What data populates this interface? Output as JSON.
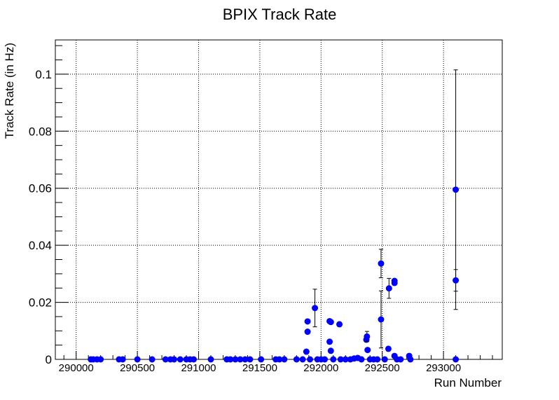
{
  "chart_data": {
    "type": "scatter",
    "title": "BPIX Track Rate",
    "xlabel": "Run Number",
    "ylabel": "Track Rate (in Hz)",
    "xlim": [
      289830,
      293480
    ],
    "ylim": [
      0,
      0.112
    ],
    "x_ticks": [
      290000,
      290500,
      291000,
      291500,
      292000,
      292500,
      293000
    ],
    "y_ticks": [
      0,
      0.02,
      0.04,
      0.06,
      0.08,
      0.1
    ],
    "y_tick_labels": [
      "0",
      "0.02",
      "0.04",
      "0.06",
      "0.08",
      "0.1"
    ],
    "grid": true,
    "grid_style": "dotted",
    "marker_color": "#0000ff",
    "errorbar_color": "#000000",
    "series": [
      {
        "points": [
          {
            "x": 290120,
            "y": 0
          },
          {
            "x": 290140,
            "y": 0
          },
          {
            "x": 290170,
            "y": 0
          },
          {
            "x": 290200,
            "y": 0
          },
          {
            "x": 290350,
            "y": 0
          },
          {
            "x": 290380,
            "y": 0
          },
          {
            "x": 290500,
            "y": 0
          },
          {
            "x": 290620,
            "y": 0
          },
          {
            "x": 290730,
            "y": 0
          },
          {
            "x": 290770,
            "y": 0
          },
          {
            "x": 290800,
            "y": 0
          },
          {
            "x": 290850,
            "y": 0
          },
          {
            "x": 290900,
            "y": 0
          },
          {
            "x": 290930,
            "y": 0
          },
          {
            "x": 290960,
            "y": 0
          },
          {
            "x": 291100,
            "y": 0
          },
          {
            "x": 291230,
            "y": 0
          },
          {
            "x": 291260,
            "y": 0
          },
          {
            "x": 291300,
            "y": 0
          },
          {
            "x": 291340,
            "y": 0
          },
          {
            "x": 291380,
            "y": 0
          },
          {
            "x": 291420,
            "y": 0
          },
          {
            "x": 291510,
            "y": 0
          },
          {
            "x": 291630,
            "y": 0
          },
          {
            "x": 291660,
            "y": 0
          },
          {
            "x": 291700,
            "y": 0
          },
          {
            "x": 291800,
            "y": 0
          },
          {
            "x": 291850,
            "y": 0
          },
          {
            "x": 291880,
            "y": 0.0027
          },
          {
            "x": 291890,
            "y": 0.0097
          },
          {
            "x": 291890,
            "y": 0.0133
          },
          {
            "x": 291910,
            "y": 0
          },
          {
            "x": 291950,
            "y": 0.018,
            "err": 0.0066
          },
          {
            "x": 291970,
            "y": 0
          },
          {
            "x": 292000,
            "y": 0
          },
          {
            "x": 292030,
            "y": 0
          },
          {
            "x": 292070,
            "y": 0.0134
          },
          {
            "x": 292080,
            "y": 0.0131
          },
          {
            "x": 292070,
            "y": 0.0062
          },
          {
            "x": 292080,
            "y": 0.003
          },
          {
            "x": 292100,
            "y": 0
          },
          {
            "x": 292150,
            "y": 0.0123
          },
          {
            "x": 292160,
            "y": 0
          },
          {
            "x": 292200,
            "y": 0
          },
          {
            "x": 292240,
            "y": 0
          },
          {
            "x": 292270,
            "y": 0.0003
          },
          {
            "x": 292300,
            "y": 0.0005
          },
          {
            "x": 292330,
            "y": 0
          },
          {
            "x": 292370,
            "y": 0.0069
          },
          {
            "x": 292375,
            "y": 0.008,
            "err": 0.0018
          },
          {
            "x": 292380,
            "y": 0.0033
          },
          {
            "x": 292400,
            "y": 0
          },
          {
            "x": 292430,
            "y": 0
          },
          {
            "x": 292460,
            "y": 0
          },
          {
            "x": 292490,
            "y": 0.0336,
            "err": 0.005
          },
          {
            "x": 292490,
            "y": 0.014,
            "err": 0.01
          },
          {
            "x": 292520,
            "y": 0
          },
          {
            "x": 292550,
            "y": 0.0037
          },
          {
            "x": 292555,
            "y": 0.0249,
            "err": 0.0035
          },
          {
            "x": 292600,
            "y": 0.0268
          },
          {
            "x": 292600,
            "y": 0.0275
          },
          {
            "x": 292600,
            "y": 0.0012
          },
          {
            "x": 292620,
            "y": 0
          },
          {
            "x": 292650,
            "y": 0
          },
          {
            "x": 292720,
            "y": 0.0012
          },
          {
            "x": 292730,
            "y": 0
          },
          {
            "x": 293100,
            "y": 0.0595,
            "err": 0.042
          },
          {
            "x": 293100,
            "y": 0.0277,
            "err": 0.0038
          },
          {
            "x": 293100,
            "y": 0
          }
        ]
      }
    ]
  }
}
